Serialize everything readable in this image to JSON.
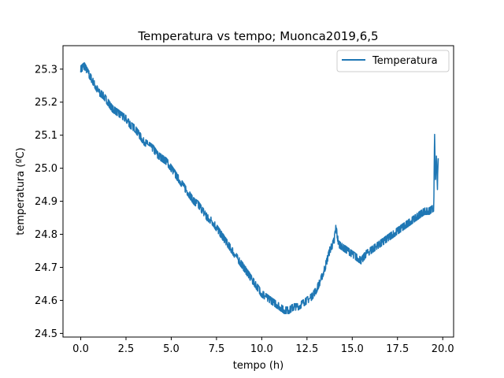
{
  "chart_data": {
    "type": "line",
    "title": "Temperatura vs tempo; Muonca2019,6,5",
    "xlabel": "tempo (h)",
    "ylabel": "temperatura (ºC)",
    "xlim": [
      -0.98,
      20.6
    ],
    "ylim": [
      24.489,
      25.371
    ],
    "xticks": [
      0.0,
      2.5,
      5.0,
      7.5,
      10.0,
      12.5,
      15.0,
      17.5,
      20.0
    ],
    "xtick_labels": [
      "0.0",
      "2.5",
      "5.0",
      "7.5",
      "10.0",
      "12.5",
      "15.0",
      "17.5",
      "20.0"
    ],
    "yticks": [
      24.5,
      24.6,
      24.7,
      24.8,
      24.9,
      25.0,
      25.1,
      25.2,
      25.3
    ],
    "ytick_labels": [
      "24.5",
      "24.6",
      "24.7",
      "24.8",
      "24.9",
      "25.0",
      "25.1",
      "25.2",
      "25.3"
    ],
    "grid": false,
    "legend_position": "top-right",
    "series": [
      {
        "name": "Temperatura",
        "color": "#1f77b4",
        "x": [
          0.0,
          0.2,
          0.4,
          0.6,
          0.8,
          1.0,
          1.25,
          1.5,
          1.75,
          2.0,
          2.25,
          2.5,
          2.75,
          3.0,
          3.25,
          3.5,
          3.75,
          4.0,
          4.25,
          4.5,
          4.75,
          5.0,
          5.25,
          5.5,
          5.75,
          6.0,
          6.25,
          6.5,
          6.75,
          7.0,
          7.25,
          7.5,
          7.75,
          8.0,
          8.25,
          8.5,
          8.75,
          9.0,
          9.25,
          9.5,
          9.75,
          10.0,
          10.25,
          10.5,
          10.75,
          11.0,
          11.25,
          11.5,
          11.75,
          12.0,
          12.25,
          12.5,
          12.75,
          13.0,
          13.25,
          13.5,
          13.75,
          14.0,
          14.1,
          14.25,
          14.5,
          14.75,
          15.0,
          15.25,
          15.5,
          15.75,
          16.0,
          16.25,
          16.5,
          16.75,
          17.0,
          17.25,
          17.5,
          17.75,
          18.0,
          18.25,
          18.5,
          18.75,
          19.0,
          19.25,
          19.5,
          19.55,
          19.6,
          19.65,
          19.7,
          19.75
        ],
        "values": [
          25.3,
          25.31,
          25.29,
          25.27,
          25.25,
          25.23,
          25.22,
          25.2,
          25.18,
          25.17,
          25.16,
          25.15,
          25.13,
          25.12,
          25.1,
          25.08,
          25.07,
          25.06,
          25.04,
          25.03,
          25.02,
          25.0,
          24.98,
          24.96,
          24.94,
          24.92,
          24.9,
          24.89,
          24.87,
          24.85,
          24.84,
          24.82,
          24.8,
          24.78,
          24.76,
          24.74,
          24.72,
          24.7,
          24.68,
          24.66,
          24.64,
          24.62,
          24.61,
          24.6,
          24.59,
          24.58,
          24.57,
          24.57,
          24.58,
          24.58,
          24.59,
          24.6,
          24.61,
          24.63,
          24.66,
          24.7,
          24.75,
          24.78,
          24.82,
          24.77,
          24.76,
          24.75,
          24.74,
          24.73,
          24.72,
          24.74,
          24.75,
          24.76,
          24.77,
          24.78,
          24.79,
          24.8,
          24.81,
          24.82,
          24.83,
          24.84,
          24.85,
          24.86,
          24.87,
          24.87,
          24.88,
          25.1,
          24.95,
          25.05,
          24.93,
          25.03
        ]
      }
    ]
  }
}
